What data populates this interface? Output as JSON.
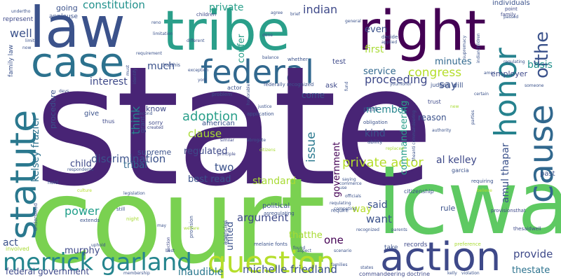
{
  "words": {
    "state": "state",
    "court": "court",
    "icwa": "icwa",
    "law": "law",
    "tribe": "tribe",
    "right": "right",
    "case": "case",
    "federal": "federal",
    "statute": "statute",
    "action": "action",
    "question": "question",
    "merrick_garland": "merrick garland",
    "cause": "cause",
    "honor": "honor",
    "ofthe": "ofthe",
    "constitution": "constitution",
    "indian": "indian",
    "private": "private",
    "member": "member",
    "say": "say",
    "proceeding": "proceeding",
    "congress": "congress",
    "well": "well",
    "interest": "interest",
    "adoption": "adoption",
    "think": "think",
    "clause": "clause",
    "issue": "issue",
    "private_actor": "private actor",
    "kelsey_frazier": "kelsey frazier",
    "al_kelley": "al kelley",
    "amul_thapar": "amul thapar",
    "child": "child",
    "discrimination": "discrimination",
    "standard": "standard",
    "best_read": "best read",
    "two": "two",
    "power": "power",
    "argument": "argument",
    "one": "one",
    "government": "government",
    "commandeering": "commandeering",
    "kind": "kind",
    "service": "service",
    "minutes": "minutes",
    "even": "even",
    "first": "first",
    "confer": "confer",
    "much": "much",
    "basis": "basis",
    "want": "want",
    "said": "said",
    "provide": "provide",
    "thestate": "thestate",
    "way": "way",
    "michelle_friedland": "michelle friedland",
    "inaudible": "inaudible",
    "act": "act",
    "united": "united",
    "murphy": "murphy",
    "regulated": "regulated",
    "tribal": "tribal",
    "supreme": "supreme",
    "american": "american",
    "procedure": "procedure",
    "employer": "employer",
    "going": "going",
    "applause": "applause",
    "represent": "represent",
    "family_law": "family law",
    "federal_government": "federal government",
    "thatthe": "thatthe",
    "know": "know",
    "come": "come",
    "test": "test",
    "ask": "ask",
    "part": "part",
    "reason": "reason",
    "rule": "rule",
    "individuals": "individuals",
    "point": "point",
    "family": "family",
    "will": "will",
    "judges": "judges",
    "trust": "trust",
    "citizenship": "citizenship",
    "past": "past",
    "political": "political",
    "take": "take",
    "records": "records",
    "commandeering_doctrine": "commandeering doctrine",
    "melanie_fonts": "melanie fonts",
    "give": "give",
    "thus": "thus",
    "grant": "grant",
    "sorry": "sorry",
    "created": "created",
    "certain": "certain",
    "someone": "someone",
    "garcia": "garcia",
    "requiring": "requiring",
    "believe": "believe",
    "preference": "preference",
    "thesaidwell": "thesaidwell",
    "provisionsthat": "provisionsthat",
    "ability": "ability",
    "replaced": "replaced",
    "obligation": "obligation",
    "principle": "principle",
    "similar": "similar",
    "abrogate": "abrogate",
    "application": "application",
    "justice": "justice",
    "citizens": "citizens",
    "recognized": "recognized",
    "saying": "saying",
    "use": "use",
    "officials": "officials",
    "competing": "competing",
    "require": "require",
    "requlating": "requlating",
    "asregulating": "asregulating",
    "agencies": "agencies",
    "provision": "provision",
    "welfare": "welfare",
    "section": "section",
    "extends": "extends",
    "night": "night",
    "still": "still",
    "uphold": "uphold",
    "involved": "involved",
    "membership": "membership",
    "best": "best",
    "hold": "hold",
    "respondents": "respondents",
    "culture": "culture",
    "understood": "understood",
    "done": "done",
    "limited": "limited",
    "now": "now",
    "undertho": "undertho",
    "children": "children",
    "reno": "reno",
    "brief": "brief",
    "agree": "agree",
    "general": "general",
    "decide": "decide",
    "applied": "applied",
    "whether": "whether",
    "balance": "balance",
    "problem": "problem",
    "actor": "actor",
    "federally_recognized": "federally recognized",
    "honorable": "honorable",
    "yourhonor": "yourhonor",
    "different": "different",
    "limitation": "limitation",
    "requirement": "requirement",
    "exception": "exception",
    "thatthis": "thatthis",
    "york": "york",
    "identify": "identify",
    "must": "must",
    "devs": "devs",
    "second": "second",
    "families": "families",
    "scenario": "scenario",
    "aspect": "aspect",
    "found": "found",
    "parents": "parents",
    "states": "states",
    "kelly": "kelly",
    "violation": "violation",
    "ames": "ames",
    "regulating": "regulating",
    "passed": "passed",
    "supremacy": "supremacy",
    "indianchildren": "indianchildren",
    "authority": "authority",
    "theanti_commandeering": "theanti commandeering",
    "commerce": "commerce",
    "legislation": "legislation",
    "may": "may",
    "parties": "parties",
    "new": "new",
    "fund": "fund"
  },
  "colors": {
    "viridis_dark": "#440154",
    "viridis_purple": "#482475",
    "viridis_blue": "#3b528b",
    "viridis_teal": "#21918c",
    "viridis_green": "#5ec962",
    "viridis_lime": "#b5de2b",
    "viridis_yellow": "#fde725",
    "background": "#ffffff"
  }
}
